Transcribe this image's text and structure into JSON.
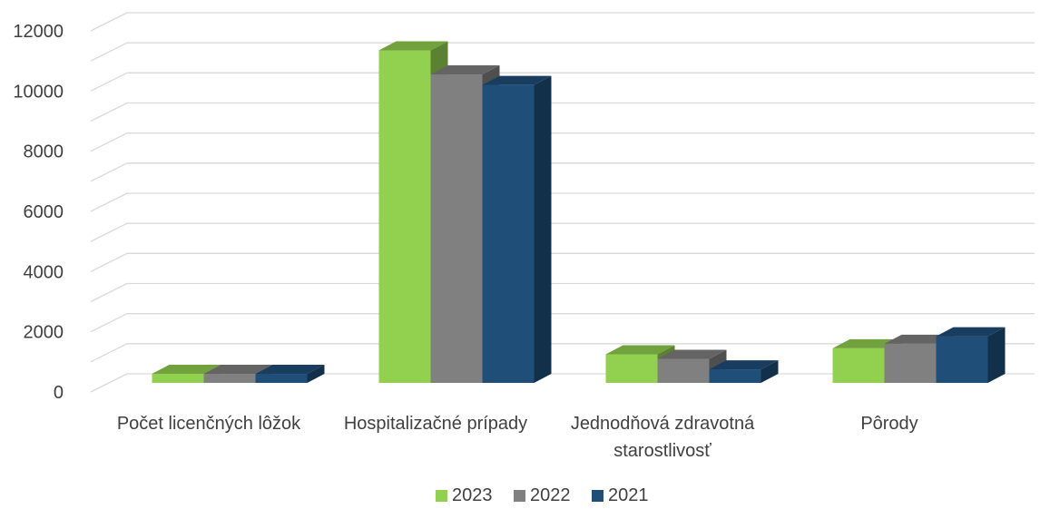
{
  "chart_data": {
    "type": "bar",
    "categories": [
      [
        "Počet licenčných lôžok"
      ],
      [
        "Hospitalizačné prípady"
      ],
      [
        "Jednodňová zdravotná",
        "starostlivosť"
      ],
      [
        "Pôrody"
      ]
    ],
    "series": [
      {
        "name": "2023",
        "color": "#92D050",
        "values": [
          300,
          11050,
          950,
          1150
        ]
      },
      {
        "name": "2022",
        "color": "#808080",
        "values": [
          300,
          10250,
          800,
          1300
        ]
      },
      {
        "name": "2021",
        "color": "#1F4E79",
        "values": [
          300,
          9900,
          450,
          1550
        ]
      }
    ],
    "yticks": [
      "0",
      "2000",
      "4000",
      "6000",
      "8000",
      "10000",
      "12000"
    ],
    "ylim": [
      0,
      12000
    ],
    "grid": true,
    "legend": "bottom",
    "style": "3d-clustered-column"
  }
}
